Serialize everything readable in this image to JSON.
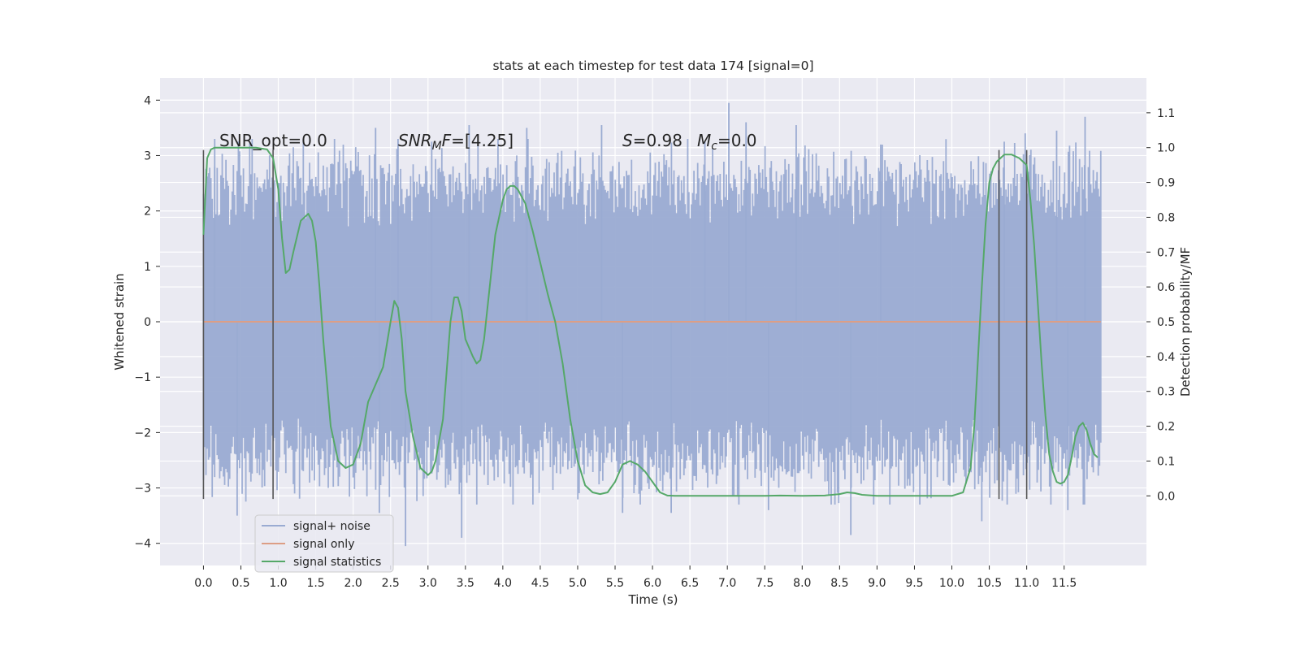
{
  "chart_data": {
    "type": "line",
    "title": "stats at each timestep for test data 174 [signal=0]",
    "xlabel": "Time (s)",
    "ylabel": "Whitened strain",
    "ylabel_right": "Detection probability/MF",
    "xlim": [
      -0.58,
      12.6
    ],
    "ylim": [
      -4.4,
      4.4
    ],
    "ylim_right": [
      -0.2,
      1.2
    ],
    "x_ticks": [
      0.0,
      0.5,
      1.0,
      1.5,
      2.0,
      2.5,
      3.0,
      3.5,
      4.0,
      4.5,
      5.0,
      5.5,
      6.0,
      6.5,
      7.0,
      7.5,
      8.0,
      8.5,
      9.0,
      9.5,
      10.0,
      10.5,
      11.0,
      11.5
    ],
    "x_tick_labels": [
      "0.0",
      "0.5",
      "1.0",
      "1.5",
      "2.0",
      "2.5",
      "3.0",
      "3.5",
      "4.0",
      "4.5",
      "5.0",
      "5.5",
      "6.0",
      "6.5",
      "7.0",
      "7.5",
      "8.0",
      "8.5",
      "9.0",
      "9.5",
      "10.0",
      "10.5",
      "11.0",
      "11.5"
    ],
    "y_ticks": [
      -4,
      -3,
      -2,
      -1,
      0,
      1,
      2,
      3,
      4
    ],
    "y_tick_labels": [
      "−4",
      "−3",
      "−2",
      "−1",
      "0",
      "1",
      "2",
      "3",
      "4"
    ],
    "y_ticks_right": [
      0.0,
      0.1,
      0.2,
      0.3,
      0.4,
      0.5,
      0.6,
      0.7,
      0.8,
      0.9,
      1.0,
      1.1
    ],
    "y_tick_labels_right": [
      "0.0",
      "0.1",
      "0.2",
      "0.3",
      "0.4",
      "0.5",
      "0.6",
      "0.7",
      "0.8",
      "0.9",
      "1.0",
      "1.1"
    ],
    "grid": true,
    "legend_position": "lower-left",
    "annotations": {
      "snr_opt": "SNR_opt=0.0",
      "snr_mf_sym": "SNR",
      "snr_mf_sub": "M",
      "snr_mf_sym2": "F",
      "snr_mf_val": "=[4.25]",
      "s_sym": "S",
      "s_val": "=0.98",
      "mc_sym": "M",
      "mc_sub": "c",
      "mc_val": "=0.0"
    },
    "vertical_markers": [
      {
        "x": 0.0,
        "ymin": -3.2,
        "ymax": 3.1
      },
      {
        "x": 0.93,
        "ymin": -3.2,
        "ymax": 3.1
      },
      {
        "x": 10.63,
        "ymin": -3.2,
        "ymax": 3.1
      },
      {
        "x": 11.0,
        "ymin": -3.2,
        "ymax": 3.1
      }
    ],
    "series": [
      {
        "name": "signal+ noise",
        "color": "#9aabd2",
        "axis": "left",
        "x_range": [
          0.0,
          11.99
        ],
        "sample_count": 720,
        "envelope_typical": 2.0,
        "extreme_peaks": [
          {
            "x": 7.02,
            "y": 3.95
          },
          {
            "x": 0.15,
            "y": 3.3
          },
          {
            "x": 2.3,
            "y": 3.5
          },
          {
            "x": 2.6,
            "y": 3.3
          },
          {
            "x": 3.05,
            "y": 3.25
          },
          {
            "x": 3.55,
            "y": 3.55
          },
          {
            "x": 4.32,
            "y": 3.5
          },
          {
            "x": 5.32,
            "y": 3.55
          },
          {
            "x": 6.7,
            "y": 3.25
          },
          {
            "x": 7.25,
            "y": 3.6
          },
          {
            "x": 7.92,
            "y": 3.55
          },
          {
            "x": 9.05,
            "y": 3.2
          },
          {
            "x": 10.7,
            "y": 3.25
          },
          {
            "x": 10.98,
            "y": 3.4
          },
          {
            "x": 11.4,
            "y": 3.45
          },
          {
            "x": 11.78,
            "y": 3.7
          },
          {
            "x": 0.45,
            "y": -3.5
          },
          {
            "x": 2.7,
            "y": -4.05
          },
          {
            "x": 2.35,
            "y": -3.45
          },
          {
            "x": 3.45,
            "y": -3.9
          },
          {
            "x": 5.6,
            "y": -3.45
          },
          {
            "x": 6.25,
            "y": -3.45
          },
          {
            "x": 7.55,
            "y": -3.4
          },
          {
            "x": 8.65,
            "y": -3.85
          },
          {
            "x": 10.4,
            "y": -3.6
          },
          {
            "x": 11.55,
            "y": -3.4
          }
        ]
      },
      {
        "name": "signal only",
        "color": "#dd9e85",
        "axis": "left",
        "x": [
          0.0,
          11.99
        ],
        "y": [
          0.0,
          0.0
        ]
      },
      {
        "name": "signal statistics",
        "color": "#55a868",
        "axis": "right",
        "x": [
          0.0,
          0.05,
          0.1,
          0.15,
          0.2,
          0.3,
          0.5,
          0.7,
          0.85,
          0.93,
          1.0,
          1.05,
          1.1,
          1.15,
          1.2,
          1.3,
          1.4,
          1.45,
          1.5,
          1.55,
          1.6,
          1.7,
          1.8,
          1.9,
          2.0,
          2.1,
          2.2,
          2.3,
          2.4,
          2.5,
          2.55,
          2.6,
          2.65,
          2.7,
          2.8,
          2.9,
          3.0,
          3.05,
          3.1,
          3.2,
          3.3,
          3.35,
          3.4,
          3.45,
          3.5,
          3.6,
          3.65,
          3.7,
          3.75,
          3.8,
          3.9,
          4.0,
          4.05,
          4.1,
          4.15,
          4.2,
          4.3,
          4.4,
          4.5,
          4.6,
          4.7,
          4.8,
          4.9,
          5.0,
          5.1,
          5.2,
          5.3,
          5.4,
          5.5,
          5.6,
          5.7,
          5.75,
          5.8,
          5.9,
          6.0,
          6.1,
          6.2,
          6.3,
          6.5,
          7.0,
          7.5,
          7.7,
          8.0,
          8.3,
          8.5,
          8.6,
          8.7,
          8.8,
          9.0,
          9.5,
          10.0,
          10.15,
          10.25,
          10.3,
          10.35,
          10.4,
          10.45,
          10.5,
          10.55,
          10.6,
          10.65,
          10.7,
          10.8,
          10.9,
          11.0,
          11.05,
          11.1,
          11.15,
          11.2,
          11.25,
          11.3,
          11.35,
          11.4,
          11.45,
          11.5,
          11.55,
          11.6,
          11.65,
          11.7,
          11.75,
          11.8,
          11.85,
          11.9,
          11.95
        ],
        "y": [
          0.75,
          0.97,
          0.995,
          1.0,
          1.0,
          1.0,
          1.0,
          1.0,
          0.995,
          0.97,
          0.88,
          0.74,
          0.64,
          0.65,
          0.7,
          0.79,
          0.81,
          0.79,
          0.73,
          0.6,
          0.45,
          0.2,
          0.1,
          0.08,
          0.09,
          0.15,
          0.27,
          0.32,
          0.37,
          0.5,
          0.56,
          0.54,
          0.45,
          0.3,
          0.17,
          0.08,
          0.06,
          0.07,
          0.1,
          0.22,
          0.5,
          0.57,
          0.57,
          0.53,
          0.45,
          0.4,
          0.38,
          0.39,
          0.45,
          0.55,
          0.75,
          0.85,
          0.88,
          0.89,
          0.89,
          0.88,
          0.84,
          0.76,
          0.67,
          0.58,
          0.5,
          0.38,
          0.22,
          0.1,
          0.03,
          0.01,
          0.005,
          0.01,
          0.04,
          0.09,
          0.1,
          0.095,
          0.09,
          0.07,
          0.04,
          0.01,
          0.001,
          0.0,
          0.0,
          0.0,
          0.0,
          0.001,
          0.0,
          0.001,
          0.005,
          0.01,
          0.008,
          0.003,
          0.0,
          0.0,
          0.0,
          0.01,
          0.08,
          0.2,
          0.4,
          0.6,
          0.78,
          0.9,
          0.94,
          0.96,
          0.97,
          0.98,
          0.98,
          0.97,
          0.95,
          0.85,
          0.72,
          0.55,
          0.38,
          0.23,
          0.12,
          0.07,
          0.04,
          0.035,
          0.04,
          0.06,
          0.11,
          0.17,
          0.2,
          0.21,
          0.19,
          0.15,
          0.12,
          0.11
        ]
      }
    ]
  }
}
